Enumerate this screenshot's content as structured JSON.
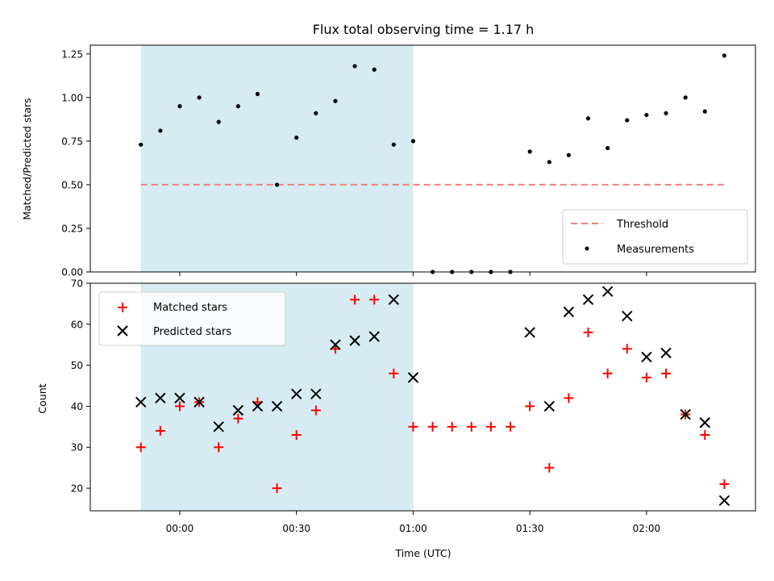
{
  "chart_data": [
    {
      "type": "scatter",
      "title": "Flux total observing time = 1.17 h",
      "ylabel": "Matched/Predicted stars",
      "ylim": [
        0,
        1.3
      ],
      "yticks": [
        "0.00",
        "0.25",
        "0.50",
        "0.75",
        "1.00",
        "1.25"
      ],
      "ytick_values": [
        0,
        0.25,
        0.5,
        0.75,
        1.0,
        1.25
      ],
      "shaded_span": [
        "23:50",
        "01:00"
      ],
      "legend_position": "lower-right",
      "threshold": {
        "name": "Threshold",
        "value": 0.5,
        "color": "#f08080"
      },
      "series": [
        {
          "name": "Measurements",
          "color": "#000000",
          "x": [
            "23:50",
            "23:55",
            "00:00",
            "00:05",
            "00:10",
            "00:15",
            "00:20",
            "00:25",
            "00:30",
            "00:35",
            "00:40",
            "00:45",
            "00:50",
            "00:55",
            "01:00",
            "01:05",
            "01:10",
            "01:15",
            "01:20",
            "01:25",
            "01:30",
            "01:35",
            "01:40",
            "01:45",
            "01:50",
            "01:55",
            "02:00",
            "02:05",
            "02:10",
            "02:15",
            "02:20"
          ],
          "y": [
            0.73,
            0.81,
            0.95,
            1.0,
            0.86,
            0.95,
            1.02,
            0.5,
            0.77,
            0.91,
            0.98,
            1.18,
            1.16,
            0.73,
            0.75,
            0,
            0,
            0,
            0,
            0,
            0.69,
            0.63,
            0.67,
            0.88,
            0.71,
            0.87,
            0.9,
            0.91,
            1.0,
            0.92,
            1.24
          ]
        }
      ]
    },
    {
      "type": "scatter",
      "xlabel": "Time (UTC)",
      "ylabel": "Count",
      "ylim": [
        14.5,
        70
      ],
      "yticks": [
        "20",
        "30",
        "40",
        "50",
        "60",
        "70"
      ],
      "ytick_values": [
        20,
        30,
        40,
        50,
        60,
        70
      ],
      "xticks": [
        "00:00",
        "00:30",
        "01:00",
        "01:30",
        "02:00"
      ],
      "xlim": [
        "23:37",
        "02:28"
      ],
      "shaded_span": [
        "23:50",
        "01:00"
      ],
      "legend_position": "upper-left",
      "series": [
        {
          "name": "Matched stars",
          "color": "#ff0000",
          "marker": "+",
          "x": [
            "23:50",
            "23:55",
            "00:00",
            "00:05",
            "00:10",
            "00:15",
            "00:20",
            "00:25",
            "00:30",
            "00:35",
            "00:40",
            "00:45",
            "00:50",
            "00:55",
            "01:00",
            "01:05",
            "01:10",
            "01:15",
            "01:20",
            "01:25",
            "01:30",
            "01:35",
            "01:40",
            "01:45",
            "01:50",
            "01:55",
            "02:00",
            "02:05",
            "02:10",
            "02:15",
            "02:20"
          ],
          "y": [
            30,
            34,
            40,
            41,
            30,
            37,
            41,
            20,
            33,
            39,
            54,
            66,
            66,
            48,
            35,
            35,
            35,
            35,
            35,
            35,
            40,
            25,
            42,
            58,
            48,
            54,
            47,
            48,
            38,
            33,
            21
          ]
        },
        {
          "name": "Predicted stars",
          "color": "#000000",
          "marker": "x",
          "x": [
            "23:50",
            "23:55",
            "00:00",
            "00:05",
            "00:10",
            "00:15",
            "00:20",
            "00:25",
            "00:30",
            "00:35",
            "00:40",
            "00:45",
            "00:50",
            "00:55",
            "01:00",
            "01:30",
            "01:35",
            "01:40",
            "01:45",
            "01:50",
            "01:55",
            "02:00",
            "02:05",
            "02:10",
            "02:15",
            "02:20"
          ],
          "y": [
            41,
            42,
            42,
            41,
            35,
            39,
            40,
            40,
            43,
            43,
            55,
            56,
            57,
            66,
            47,
            58,
            40,
            63,
            66,
            68,
            62,
            52,
            53,
            38,
            36,
            17
          ]
        }
      ]
    }
  ]
}
